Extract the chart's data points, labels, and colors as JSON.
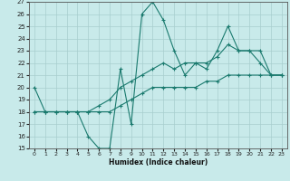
{
  "series1": [
    20,
    18,
    18,
    18,
    18,
    16,
    15,
    15,
    21.5,
    17,
    26,
    27,
    25.5,
    23,
    21,
    22,
    21.5,
    23,
    25,
    23,
    23,
    22,
    21,
    21
  ],
  "series2": [
    18,
    18,
    18,
    18,
    18,
    18,
    18.5,
    19,
    20,
    20.5,
    21,
    21.5,
    22,
    21.5,
    22,
    22,
    22,
    22.5,
    23.5,
    23,
    23,
    23,
    21,
    21
  ],
  "series3": [
    18,
    18,
    18,
    18,
    18,
    18,
    18,
    18,
    18.5,
    19,
    19.5,
    20,
    20,
    20,
    20,
    20,
    20.5,
    20.5,
    21,
    21,
    21,
    21,
    21,
    21
  ],
  "x": [
    0,
    1,
    2,
    3,
    4,
    5,
    6,
    7,
    8,
    9,
    10,
    11,
    12,
    13,
    14,
    15,
    16,
    17,
    18,
    19,
    20,
    21,
    22,
    23
  ],
  "ylim": [
    15,
    27
  ],
  "yticks": [
    15,
    16,
    17,
    18,
    19,
    20,
    21,
    22,
    23,
    24,
    25,
    26,
    27
  ],
  "xticks": [
    0,
    1,
    2,
    3,
    4,
    5,
    6,
    7,
    8,
    9,
    10,
    11,
    12,
    13,
    14,
    15,
    16,
    17,
    18,
    19,
    20,
    21,
    22,
    23
  ],
  "xlabel": "Humidex (Indice chaleur)",
  "line_color": "#1a7a6e",
  "bg_color": "#c8eaea",
  "grid_color": "#a8cece"
}
